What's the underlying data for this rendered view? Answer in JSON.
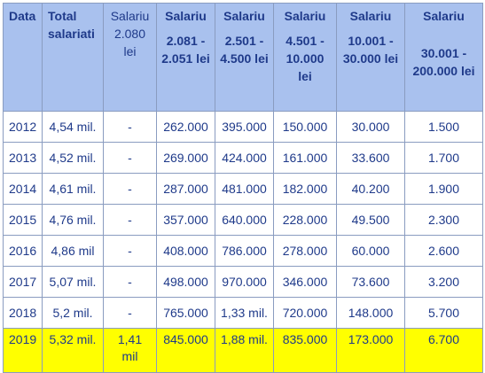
{
  "headers": [
    {
      "lines": [
        "Data"
      ],
      "bold": true
    },
    {
      "lines": [
        "Total",
        "salariati"
      ],
      "bold": true
    },
    {
      "lines": [
        "Salariu",
        "2.080",
        "lei"
      ],
      "bold": false
    },
    {
      "lines": [
        "Salariu",
        "2.081 -",
        "2.051 lei"
      ],
      "bold": true
    },
    {
      "lines": [
        "Salariu",
        "2.501 -",
        "4.500 lei"
      ],
      "bold": true
    },
    {
      "lines": [
        "Salariu",
        "4.501 -",
        "10.000",
        "lei"
      ],
      "bold": true
    },
    {
      "lines": [
        "Salariu",
        "10.001 -",
        "30.000 lei"
      ],
      "bold": true
    },
    {
      "lines": [
        "Salariu",
        "",
        "30.001 -",
        "200.000 lei"
      ],
      "bold": true
    }
  ],
  "rows": [
    [
      "2012",
      "4,54 mil.",
      "-",
      "262.000",
      "395.000",
      "150.000",
      "30.000",
      "1.500"
    ],
    [
      "2013",
      "4,52 mil.",
      "-",
      "269.000",
      "424.000",
      "161.000",
      "33.600",
      "1.700"
    ],
    [
      "2014",
      "4,61 mil.",
      "-",
      "287.000",
      "481.000",
      "182.000",
      "40.200",
      "1.900"
    ],
    [
      "2015",
      "4,76 mil.",
      "-",
      "357.000",
      "640.000",
      "228.000",
      "49.500",
      "2.300"
    ],
    [
      "2016",
      "4,86 mil",
      "-",
      "408.000",
      "786.000",
      "278.000",
      "60.000",
      "2.600"
    ],
    [
      "2017",
      "5,07 mil.",
      "-",
      "498.000",
      "970.000",
      "346.000",
      "73.600",
      "3.200"
    ],
    [
      "2018",
      "5,2 mil.",
      "-",
      "765.000",
      "1,33 mil.",
      "720.000",
      "148.000",
      "5.700"
    ]
  ],
  "last_row": [
    "2019",
    "5,32 mil.",
    "1,41 mil",
    "845.000",
    "1,88 mil.",
    "835.000",
    "173.000",
    "6.700"
  ],
  "colors": {
    "header_bg": "#a9c1ee",
    "highlight_bg": "#ffff00",
    "text": "#1f3a8a",
    "border": "#8a9cc0"
  }
}
